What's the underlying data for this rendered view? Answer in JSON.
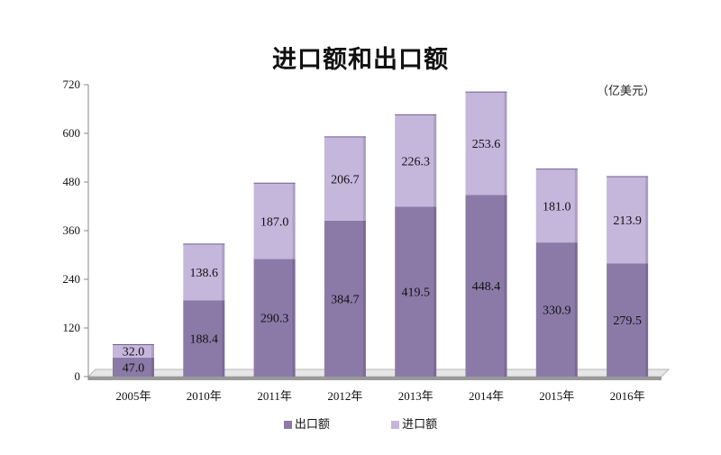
{
  "chart_data": {
    "type": "bar",
    "stacked": true,
    "title": "进口额和出口额",
    "unit": "（亿美元）",
    "categories": [
      "2005年",
      "2010年",
      "2011年",
      "2012年",
      "2013年",
      "2014年",
      "2015年",
      "2016年"
    ],
    "series": [
      {
        "name": "出口额",
        "values": [
          47.0,
          188.4,
          290.3,
          384.7,
          419.5,
          448.4,
          330.9,
          279.5
        ],
        "color": "#8b7aa8"
      },
      {
        "name": "进口额",
        "values": [
          32.0,
          138.6,
          187.0,
          206.7,
          226.3,
          253.6,
          181.0,
          213.9
        ],
        "color": "#c5b6dc"
      }
    ],
    "y_ticks": [
      "0",
      "120",
      "240",
      "360",
      "480",
      "600",
      "720"
    ],
    "ylim": [
      0,
      720
    ],
    "grid": false,
    "legend_position": "bottom"
  }
}
